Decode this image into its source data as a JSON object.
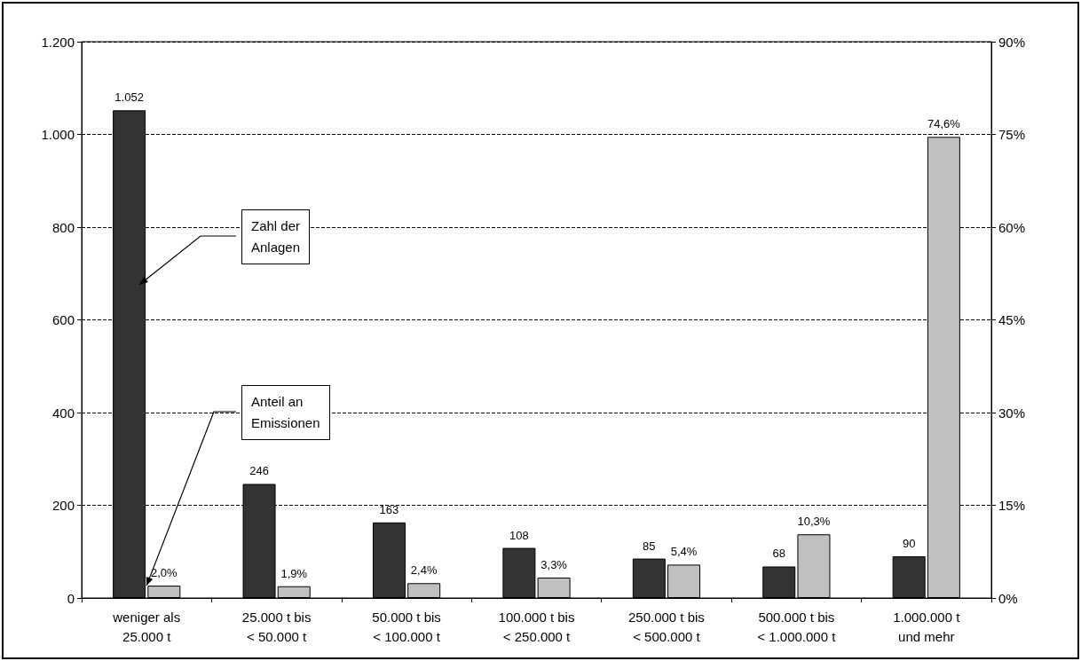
{
  "chart_data": {
    "type": "bar",
    "categories": [
      "weniger als\n25.000 t",
      "25.000 t bis\n< 50.000 t",
      "50.000 t bis\n< 100.000 t",
      "100.000 t bis\n< 250.000 t",
      "250.000 t bis\n< 500.000 t",
      "500.000 t bis\n< 1.000.000 t",
      "1.000.000 t\nund mehr"
    ],
    "series": [
      {
        "color": "#333333",
        "values": [
          1052,
          246,
          163,
          108,
          85,
          68,
          90
        ],
        "value_labels": [
          "1.052",
          "246",
          "163",
          "108",
          "85",
          "68",
          "90"
        ]
      },
      {
        "color": "#c0c0c0",
        "axis": "y2",
        "values": [
          2.0,
          1.9,
          2.4,
          3.3,
          5.4,
          10.3,
          74.6
        ],
        "value_labels": [
          "2,0%",
          "1,9%",
          "2,4%",
          "3,3%",
          "5,4%",
          "10,3%",
          "74,6%"
        ]
      }
    ],
    "ylim": [
      0,
      1200
    ],
    "yticks": [
      0,
      200,
      400,
      600,
      800,
      {
        "value": 1000,
        "label": "1.000"
      },
      {
        "value": 1200,
        "label": "1.200"
      }
    ],
    "y2lim": [
      0,
      90
    ],
    "y2ticks": [
      {
        "value": 0,
        "label": "0%"
      },
      {
        "value": 15,
        "label": "15%"
      },
      {
        "value": 30,
        "label": "30%"
      },
      {
        "value": 45,
        "label": "45%"
      },
      {
        "value": 60,
        "label": "60%"
      },
      {
        "value": 75,
        "label": "75%"
      },
      {
        "value": 90,
        "label": "90%"
      }
    ],
    "annotations": [
      {
        "text": "Zahl der\nAnlagen",
        "x": "weniger als\n25.000 t",
        "y": 676
      },
      {
        "text": "Anteil an\nEmissionen",
        "x": "weniger als\n25.000 t",
        "y": 27
      }
    ],
    "grid": "y"
  }
}
